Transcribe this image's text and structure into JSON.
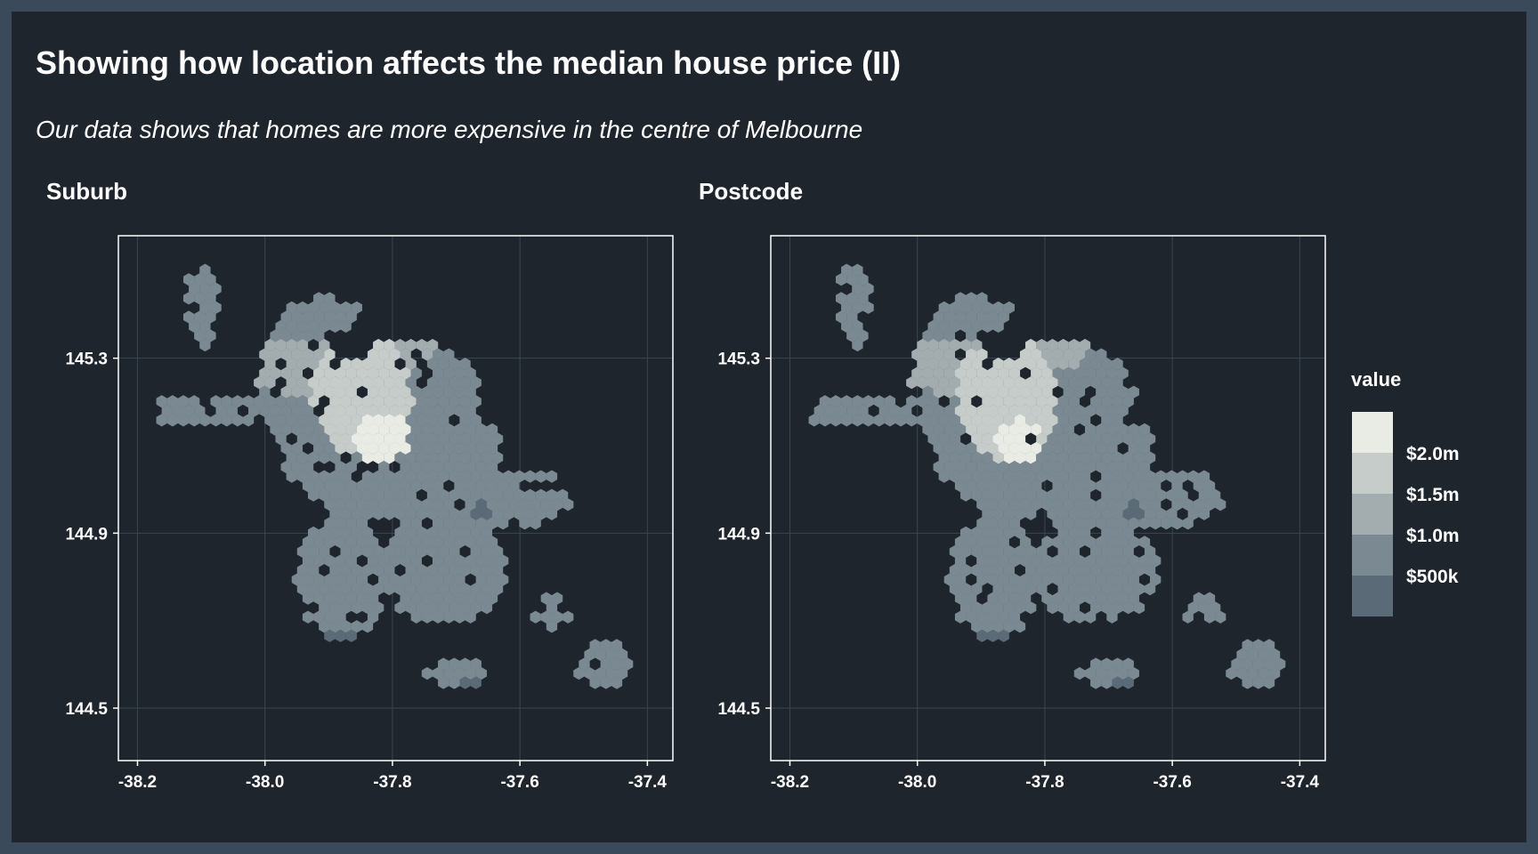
{
  "title": "Showing how location affects the median house price (II)",
  "subtitle": "Our data shows that homes are more expensive in the centre of Melbourne",
  "colors": {
    "background": "#1e252d",
    "border": "#3a4a5a",
    "bin_500k": "#5b6a77",
    "bin_1m": "#7b8a92",
    "bin_1_5m": "#a3acaf",
    "bin_2m": "#c6ccca",
    "bin_max": "#e9ece4"
  },
  "legend": {
    "title": "value",
    "labels": [
      "$2.0m",
      "$1.5m",
      "$1.0m",
      "$500k"
    ]
  },
  "chart_data": [
    {
      "type": "heatmap",
      "title": "Suburb",
      "xlim": [
        -38.23,
        -37.36
      ],
      "ylim": [
        144.38,
        145.58
      ],
      "x_ticks": [
        -38.2,
        -38.0,
        -37.8,
        -37.6,
        -37.4
      ],
      "x_tick_labels": [
        "-38.2",
        "-38.0",
        "-37.8",
        "-37.6",
        "-37.4"
      ],
      "y_ticks": [
        144.5,
        144.9,
        145.3
      ],
      "y_tick_labels": [
        "144.5",
        "144.9",
        "145.3"
      ],
      "grid": true,
      "hex_bins": {
        "x_center": -37.8,
        "x_step": 0.017,
        "y_step": 0.0195,
        "regions_by_level": [
          {
            "level": 2,
            "shapes": [
              [
                -38.15,
                145.45,
                0.025,
                0.11
              ],
              [
                -37.95,
                145.28,
                0.08,
                0.06
              ],
              [
                -37.78,
                145.32,
                0.05,
                0.05
              ]
            ]
          },
          {
            "level": 3,
            "shapes": [
              [
                -37.85,
                145.22,
                0.08,
                0.14
              ]
            ]
          },
          {
            "level": 4,
            "shapes": [
              [
                -37.82,
                145.12,
                0.045,
                0.06
              ]
            ]
          },
          {
            "level": 5,
            "shapes": [
              [
                -37.82,
                145.1,
                0.015,
                0.02
              ]
            ]
          }
        ]
      }
    },
    {
      "type": "heatmap",
      "title": "Postcode",
      "xlim": [
        -38.23,
        -37.36
      ],
      "ylim": [
        144.38,
        145.58
      ],
      "x_ticks": [
        -38.2,
        -38.0,
        -37.8,
        -37.6,
        -37.4
      ],
      "x_tick_labels": [
        "-38.2",
        "-38.0",
        "-37.8",
        "-37.6",
        "-37.4"
      ],
      "y_ticks": [
        144.5,
        144.9,
        145.3
      ],
      "y_tick_labels": [
        "144.5",
        "144.9",
        "145.3"
      ],
      "grid": true,
      "hex_bins": {
        "x_center": -37.8,
        "x_step": 0.017,
        "y_step": 0.0195,
        "regions_by_level": [
          {
            "level": 2,
            "shapes": [
              [
                -38.15,
                145.45,
                0.025,
                0.11
              ],
              [
                -37.95,
                145.28,
                0.08,
                0.06
              ],
              [
                -37.78,
                145.32,
                0.05,
                0.05
              ]
            ]
          },
          {
            "level": 3,
            "shapes": [
              [
                -37.86,
                145.21,
                0.08,
                0.14
              ]
            ]
          },
          {
            "level": 4,
            "shapes": [
              [
                -37.84,
                145.11,
                0.035,
                0.05
              ]
            ]
          },
          {
            "level": 5,
            "shapes": [
              [
                -37.83,
                145.1,
                0.012,
                0.018
              ]
            ]
          }
        ]
      }
    }
  ]
}
